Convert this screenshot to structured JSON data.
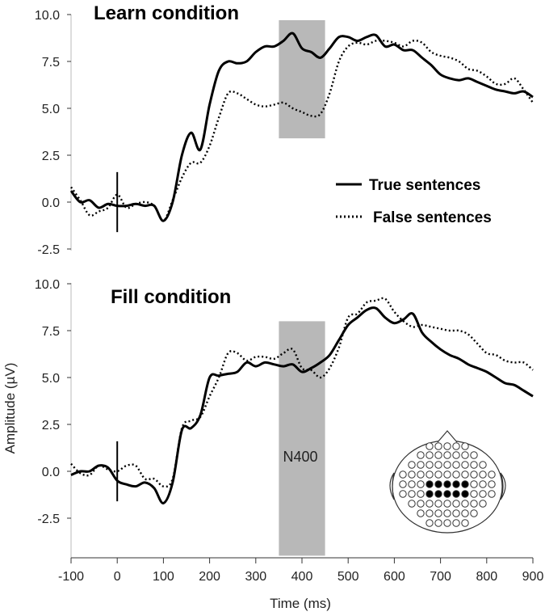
{
  "chart_data": [
    {
      "type": "line",
      "title": "Learn condition",
      "xlim": [
        -100,
        900
      ],
      "ylim": [
        -2.5,
        10.0
      ],
      "yticks": [
        "-2.5",
        "0.0",
        "2.5",
        "5.0",
        "7.5",
        "10.0"
      ],
      "shaded_window": {
        "x": [
          350,
          450
        ],
        "y": [
          3.4,
          9.7
        ]
      },
      "onset_marker": {
        "x": 0,
        "y": [
          -1.6,
          1.6
        ]
      },
      "series": [
        {
          "name": "True sentences",
          "style": "solid",
          "x": [
            -100,
            -80,
            -60,
            -40,
            -20,
            0,
            20,
            40,
            60,
            80,
            100,
            120,
            140,
            160,
            180,
            200,
            220,
            240,
            260,
            280,
            300,
            320,
            340,
            360,
            380,
            400,
            420,
            440,
            460,
            480,
            500,
            520,
            540,
            560,
            580,
            600,
            620,
            640,
            660,
            680,
            700,
            720,
            740,
            760,
            780,
            800,
            820,
            840,
            860,
            880,
            900
          ],
          "y": [
            0.6,
            0.0,
            0.1,
            -0.3,
            -0.1,
            -0.2,
            -0.2,
            -0.1,
            -0.2,
            -0.2,
            -1.0,
            0.0,
            2.5,
            3.7,
            2.8,
            5.2,
            7.0,
            7.5,
            7.4,
            7.5,
            8.0,
            8.3,
            8.3,
            8.6,
            9.0,
            8.2,
            8.0,
            7.7,
            8.2,
            8.8,
            8.8,
            8.6,
            8.8,
            8.9,
            8.3,
            8.4,
            8.1,
            8.1,
            7.7,
            7.3,
            6.8,
            6.6,
            6.5,
            6.6,
            6.4,
            6.2,
            6.0,
            5.9,
            5.8,
            5.9,
            5.6
          ]
        },
        {
          "name": "False sentences",
          "style": "dotted",
          "x": [
            -100,
            -80,
            -60,
            -40,
            -20,
            0,
            20,
            40,
            60,
            80,
            100,
            120,
            140,
            160,
            180,
            200,
            220,
            240,
            260,
            280,
            300,
            320,
            340,
            360,
            380,
            400,
            420,
            440,
            460,
            480,
            500,
            520,
            540,
            560,
            580,
            600,
            620,
            640,
            660,
            680,
            700,
            720,
            740,
            760,
            780,
            800,
            820,
            840,
            860,
            880,
            900
          ],
          "y": [
            0.8,
            0.1,
            -0.7,
            -0.5,
            -0.3,
            0.4,
            -0.3,
            -0.1,
            0.0,
            -0.2,
            -1.0,
            0.1,
            1.3,
            2.1,
            2.1,
            3.0,
            4.5,
            5.8,
            5.8,
            5.5,
            5.2,
            5.1,
            5.2,
            5.3,
            5.0,
            4.8,
            4.6,
            4.7,
            5.8,
            7.5,
            8.3,
            8.5,
            8.4,
            8.6,
            8.6,
            8.5,
            8.3,
            8.6,
            8.5,
            8.0,
            7.8,
            7.7,
            7.5,
            7.1,
            7.0,
            6.7,
            6.3,
            6.3,
            6.6,
            6.0,
            5.3
          ]
        }
      ],
      "legend": {
        "position": "right",
        "entries": [
          "True sentences",
          "False sentences"
        ]
      }
    },
    {
      "type": "line",
      "title": "Fill condition",
      "xlim": [
        -100,
        900
      ],
      "ylim": [
        -2.5,
        10.0
      ],
      "yticks": [
        "-2.5",
        "0.0",
        "2.5",
        "5.0",
        "7.5",
        "10.0"
      ],
      "shaded_window": {
        "x": [
          350,
          450
        ],
        "y": [
          -4.5,
          8.0
        ],
        "label": "N400"
      },
      "onset_marker": {
        "x": 0,
        "y": [
          -1.6,
          1.6
        ]
      },
      "series": [
        {
          "name": "True sentences",
          "style": "solid",
          "x": [
            -100,
            -80,
            -60,
            -40,
            -20,
            0,
            20,
            40,
            60,
            80,
            100,
            120,
            140,
            160,
            180,
            200,
            220,
            240,
            260,
            280,
            300,
            320,
            340,
            360,
            380,
            400,
            420,
            440,
            460,
            480,
            500,
            520,
            540,
            560,
            580,
            600,
            620,
            640,
            660,
            680,
            700,
            720,
            740,
            760,
            780,
            800,
            820,
            840,
            860,
            880,
            900
          ],
          "y": [
            -0.2,
            0.0,
            0.0,
            0.3,
            0.2,
            -0.5,
            -0.7,
            -0.8,
            -0.6,
            -0.9,
            -1.7,
            -0.6,
            2.2,
            2.3,
            3.0,
            5.0,
            5.1,
            5.2,
            5.3,
            5.8,
            5.6,
            5.8,
            5.7,
            5.6,
            5.7,
            5.3,
            5.5,
            5.8,
            6.2,
            7.0,
            7.8,
            8.2,
            8.6,
            8.7,
            8.2,
            7.9,
            8.1,
            8.4,
            7.4,
            6.9,
            6.5,
            6.2,
            6.0,
            5.7,
            5.5,
            5.3,
            5.0,
            4.7,
            4.6,
            4.3,
            4.0
          ]
        },
        {
          "name": "False sentences",
          "style": "dotted",
          "x": [
            -100,
            -80,
            -60,
            -40,
            -20,
            0,
            20,
            40,
            60,
            80,
            100,
            120,
            140,
            160,
            180,
            200,
            220,
            240,
            260,
            280,
            300,
            320,
            340,
            360,
            380,
            400,
            420,
            440,
            460,
            480,
            500,
            520,
            540,
            560,
            580,
            600,
            620,
            640,
            660,
            680,
            700,
            720,
            740,
            760,
            780,
            800,
            820,
            840,
            860,
            880,
            900
          ],
          "y": [
            0.4,
            -0.1,
            -0.2,
            0.3,
            0.1,
            0.0,
            0.3,
            0.3,
            -0.4,
            -0.4,
            -0.8,
            -0.4,
            2.3,
            2.7,
            2.9,
            4.0,
            5.0,
            6.3,
            6.3,
            5.9,
            6.1,
            6.1,
            6.0,
            6.3,
            6.5,
            5.5,
            5.4,
            5.0,
            5.5,
            6.6,
            8.2,
            8.4,
            9.0,
            9.1,
            9.2,
            8.5,
            8.0,
            7.7,
            7.8,
            7.7,
            7.6,
            7.5,
            7.5,
            7.3,
            6.8,
            6.3,
            6.2,
            5.9,
            5.8,
            5.8,
            5.4
          ]
        }
      ]
    }
  ],
  "axis_labels": {
    "x": "Time (ms)",
    "y": "Amplitude (µV)"
  },
  "xticks": [
    "-100",
    "0",
    "100",
    "200",
    "300",
    "400",
    "500",
    "600",
    "700",
    "800",
    "900"
  ],
  "inset": {
    "icon": "electrode-head-map-icon",
    "highlighted_electrodes": 10
  }
}
